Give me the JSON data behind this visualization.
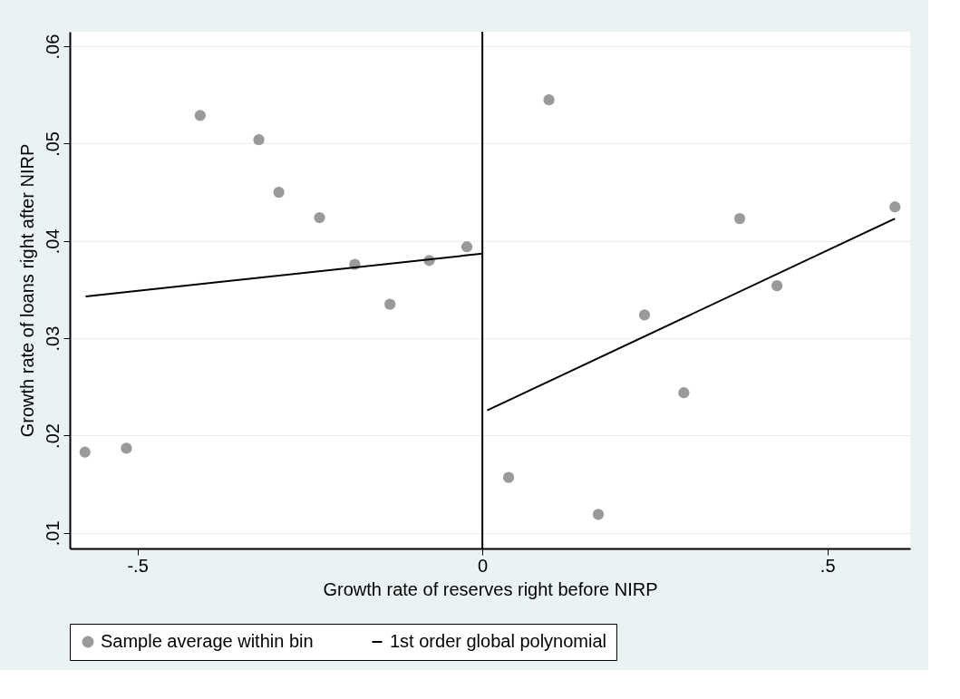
{
  "chart_data": {
    "type": "scatter",
    "xlabel": "Growth rate of reserves right before NIRP",
    "ylabel": "Growth rate of loans right after NIRP",
    "xlim": [
      -0.598,
      0.62
    ],
    "xticks": [
      {
        "value": -0.5,
        "label": "-.5"
      },
      0,
      {
        "value": 0.5,
        "label": ".5"
      }
    ],
    "ylim": [
      0.0084,
      0.0615
    ],
    "yticks": [
      {
        "value": 0.01,
        "label": ".01"
      },
      {
        "value": 0.02,
        "label": ".02"
      },
      {
        "value": 0.03,
        "label": ".03"
      },
      {
        "value": 0.04,
        "label": ".04"
      },
      {
        "value": 0.05,
        "label": ".05"
      },
      {
        "value": 0.06,
        "label": ".06"
      }
    ],
    "grid": "y",
    "legend": "bottom",
    "marker": "circle",
    "ref_lines": [
      {
        "axis": "x",
        "value": 0,
        "color": "#000000"
      }
    ],
    "series": [
      {
        "name": "Sample average within bin",
        "color": "#9a9a9a",
        "x": [
          -0.576,
          -0.516,
          -0.409,
          -0.324,
          -0.295,
          -0.236,
          -0.185,
          -0.134,
          -0.077,
          -0.0225,
          0.038,
          0.0965,
          0.168,
          0.235,
          0.292,
          0.373,
          0.427,
          0.598
        ],
        "values": [
          0.0183,
          0.0187,
          0.0529,
          0.0504,
          0.045,
          0.0424,
          0.0376,
          0.0335,
          0.038,
          0.0394,
          0.0157,
          0.0545,
          0.0119,
          0.0324,
          0.0244,
          0.0423,
          0.0354,
          0.0435
        ]
      },
      {
        "name": "1st order global polynomial",
        "type": "line",
        "color": "#000000",
        "line_style": "solid",
        "marker": "none",
        "x": [
          -0.575,
          0,
          0.003,
          0.007,
          0.598
        ],
        "values": [
          0.0343,
          0.0387,
          null,
          0.0226,
          0.0423
        ]
      }
    ]
  }
}
